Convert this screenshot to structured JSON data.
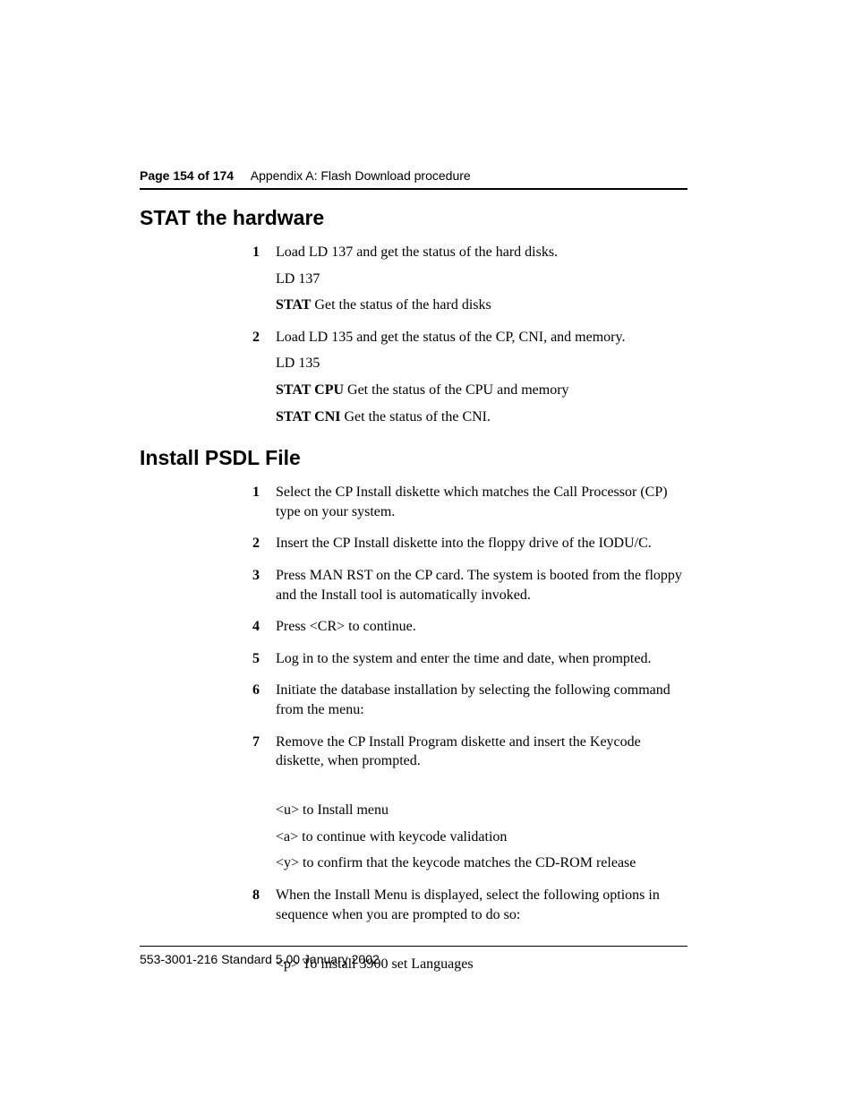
{
  "header": {
    "page_label": "Page 154 of 174",
    "appendix": "Appendix A: Flash Download procedure"
  },
  "section1": {
    "title": "STAT the hardware",
    "steps": [
      {
        "num": "1",
        "lines": [
          {
            "text": "Load LD 137 and get the status of the hard disks."
          },
          {
            "text": "LD 137"
          },
          {
            "cmd": "STAT",
            "rest": "    Get the status of the hard disks"
          }
        ]
      },
      {
        "num": "2",
        "lines": [
          {
            "text": "Load LD 135 and get the status of the CP, CNI, and memory."
          },
          {
            "text": "LD 135"
          },
          {
            "cmd": "STAT CPU",
            "rest": " Get the status of the CPU and memory"
          },
          {
            "cmd": "STAT CNI",
            "rest": " Get the status of the CNI."
          }
        ]
      }
    ]
  },
  "section2": {
    "title": "Install PSDL File",
    "steps": [
      {
        "num": "1",
        "lines": [
          {
            "text": "Select the CP Install diskette which matches the Call Processor (CP) type on your system."
          }
        ]
      },
      {
        "num": "2",
        "lines": [
          {
            "text": "Insert the CP Install diskette into the floppy drive of the IODU/C."
          }
        ]
      },
      {
        "num": "3",
        "lines": [
          {
            "text": "Press MAN RST on the CP card. The system is booted from the floppy and the Install tool is automatically invoked."
          }
        ]
      },
      {
        "num": "4",
        "lines": [
          {
            "text": "Press <CR> to continue."
          }
        ]
      },
      {
        "num": "5",
        "lines": [
          {
            "text": "Log in to the system and enter the time and date, when prompted."
          }
        ]
      },
      {
        "num": "6",
        "lines": [
          {
            "text": "Initiate the database installation by selecting the following command from the menu:"
          }
        ]
      },
      {
        "num": "7",
        "lines": [
          {
            "text": "Remove the CP Install Program diskette and insert the Keycode diskette, when prompted."
          },
          {
            "spacer": true
          },
          {
            "text": "<u> to Install menu"
          },
          {
            "text": "<a> to continue with keycode validation"
          },
          {
            "text": "<y> to confirm that the keycode matches the CD-ROM release"
          }
        ]
      },
      {
        "num": "8",
        "lines": [
          {
            "text": "When the Install Menu is displayed, select the following options in sequence when you are prompted to do so:"
          },
          {
            "spacer": true
          },
          {
            "text": "<p> To install 3900 set Languages"
          }
        ]
      }
    ]
  },
  "footer": {
    "text": "553-3001-216   Standard   5.00   January 2002"
  }
}
